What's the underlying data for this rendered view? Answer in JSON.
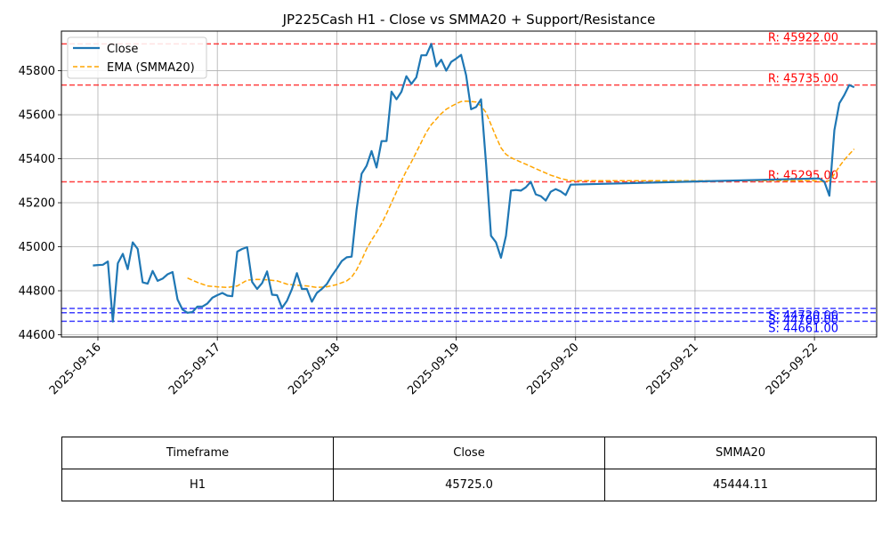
{
  "chart_data": {
    "type": "line",
    "title": "JP225Cash H1 - Close vs SMMA20 + Support/Resistance",
    "xlabel": "",
    "ylabel": "",
    "x_tick_labels": [
      "2025-09-16",
      "2025-09-17",
      "2025-09-18",
      "2025-09-19",
      "2025-09-20",
      "2025-09-21",
      "2025-09-22"
    ],
    "y_tick_labels": [
      "44600",
      "44800",
      "45000",
      "45200",
      "45400",
      "45600",
      "45800"
    ],
    "ylim": [
      44590,
      45980
    ],
    "xlim": [
      "2025-09-15T16:40",
      "2025-09-22T12:30"
    ],
    "grid": true,
    "legend_position": "upper left",
    "colors": {
      "close": "#1f77b4",
      "smma": "#ffa500",
      "resistance": "#ff0000",
      "support": "#0000ff"
    },
    "series": [
      {
        "name": "Close",
        "style": "solid",
        "points": [
          [
            "2025-09-15T23:00",
            44915
          ],
          [
            "2025-09-16T00:00",
            44917
          ],
          [
            "2025-09-16T01:00",
            44918
          ],
          [
            "2025-09-16T02:00",
            44933
          ],
          [
            "2025-09-16T03:00",
            44660
          ],
          [
            "2025-09-16T04:00",
            44925
          ],
          [
            "2025-09-16T05:00",
            44968
          ],
          [
            "2025-09-16T06:00",
            44898
          ],
          [
            "2025-09-16T07:00",
            45020
          ],
          [
            "2025-09-16T08:00",
            44990
          ],
          [
            "2025-09-16T09:00",
            44838
          ],
          [
            "2025-09-16T10:00",
            44832
          ],
          [
            "2025-09-16T11:00",
            44890
          ],
          [
            "2025-09-16T12:00",
            44845
          ],
          [
            "2025-09-16T13:00",
            44855
          ],
          [
            "2025-09-16T14:00",
            44875
          ],
          [
            "2025-09-16T15:00",
            44885
          ],
          [
            "2025-09-16T16:00",
            44760
          ],
          [
            "2025-09-16T17:00",
            44715
          ],
          [
            "2025-09-16T18:00",
            44700
          ],
          [
            "2025-09-16T19:00",
            44703
          ],
          [
            "2025-09-16T20:00",
            44728
          ],
          [
            "2025-09-16T21:00",
            44728
          ],
          [
            "2025-09-16T22:00",
            44742
          ],
          [
            "2025-09-16T23:00",
            44768
          ],
          [
            "2025-09-17T00:00",
            44780
          ],
          [
            "2025-09-17T01:00",
            44790
          ],
          [
            "2025-09-17T02:00",
            44778
          ],
          [
            "2025-09-17T03:00",
            44775
          ],
          [
            "2025-09-17T04:00",
            44978
          ],
          [
            "2025-09-17T05:00",
            44990
          ],
          [
            "2025-09-17T06:00",
            44998
          ],
          [
            "2025-09-17T07:00",
            44840
          ],
          [
            "2025-09-17T08:00",
            44808
          ],
          [
            "2025-09-17T09:00",
            44835
          ],
          [
            "2025-09-17T10:00",
            44888
          ],
          [
            "2025-09-17T11:00",
            44782
          ],
          [
            "2025-09-17T12:00",
            44780
          ],
          [
            "2025-09-17T13:00",
            44722
          ],
          [
            "2025-09-17T14:00",
            44755
          ],
          [
            "2025-09-17T15:00",
            44808
          ],
          [
            "2025-09-17T16:00",
            44880
          ],
          [
            "2025-09-17T17:00",
            44808
          ],
          [
            "2025-09-17T18:00",
            44808
          ],
          [
            "2025-09-17T19:00",
            44750
          ],
          [
            "2025-09-17T20:00",
            44790
          ],
          [
            "2025-09-17T21:00",
            44808
          ],
          [
            "2025-09-17T22:00",
            44830
          ],
          [
            "2025-09-17T23:00",
            44868
          ],
          [
            "2025-09-18T00:00",
            44900
          ],
          [
            "2025-09-18T01:00",
            44935
          ],
          [
            "2025-09-18T02:00",
            44952
          ],
          [
            "2025-09-18T03:00",
            44955
          ],
          [
            "2025-09-18T04:00",
            45170
          ],
          [
            "2025-09-18T05:00",
            45332
          ],
          [
            "2025-09-18T06:00",
            45368
          ],
          [
            "2025-09-18T07:00",
            45435
          ],
          [
            "2025-09-18T08:00",
            45360
          ],
          [
            "2025-09-18T09:00",
            45480
          ],
          [
            "2025-09-18T10:00",
            45480
          ],
          [
            "2025-09-18T11:00",
            45705
          ],
          [
            "2025-09-18T12:00",
            45670
          ],
          [
            "2025-09-18T13:00",
            45705
          ],
          [
            "2025-09-18T14:00",
            45775
          ],
          [
            "2025-09-18T15:00",
            45740
          ],
          [
            "2025-09-18T16:00",
            45770
          ],
          [
            "2025-09-18T17:00",
            45870
          ],
          [
            "2025-09-18T18:00",
            45870
          ],
          [
            "2025-09-18T19:00",
            45922
          ],
          [
            "2025-09-18T20:00",
            45820
          ],
          [
            "2025-09-18T21:00",
            45850
          ],
          [
            "2025-09-18T22:00",
            45800
          ],
          [
            "2025-09-18T23:00",
            45840
          ],
          [
            "2025-09-19T00:00",
            45855
          ],
          [
            "2025-09-19T01:00",
            45872
          ],
          [
            "2025-09-19T02:00",
            45780
          ],
          [
            "2025-09-19T03:00",
            45625
          ],
          [
            "2025-09-19T04:00",
            45635
          ],
          [
            "2025-09-19T05:00",
            45670
          ],
          [
            "2025-09-19T06:00",
            45380
          ],
          [
            "2025-09-19T07:00",
            45050
          ],
          [
            "2025-09-19T08:00",
            45020
          ],
          [
            "2025-09-19T09:00",
            44950
          ],
          [
            "2025-09-19T10:00",
            45050
          ],
          [
            "2025-09-19T11:00",
            45255
          ],
          [
            "2025-09-19T12:00",
            45258
          ],
          [
            "2025-09-19T13:00",
            45255
          ],
          [
            "2025-09-19T14:00",
            45270
          ],
          [
            "2025-09-19T15:00",
            45295
          ],
          [
            "2025-09-19T16:00",
            45238
          ],
          [
            "2025-09-19T17:00",
            45230
          ],
          [
            "2025-09-19T18:00",
            45210
          ],
          [
            "2025-09-19T19:00",
            45250
          ],
          [
            "2025-09-19T20:00",
            45262
          ],
          [
            "2025-09-19T21:00",
            45252
          ],
          [
            "2025-09-19T22:00",
            45235
          ],
          [
            "2025-09-19T23:00",
            45282
          ],
          [
            "2025-09-22T00:00",
            45310
          ],
          [
            "2025-09-22T01:00",
            45310
          ],
          [
            "2025-09-22T02:00",
            45295
          ],
          [
            "2025-09-22T03:00",
            45232
          ],
          [
            "2025-09-22T04:00",
            45530
          ],
          [
            "2025-09-22T05:00",
            45652
          ],
          [
            "2025-09-22T06:00",
            45690
          ],
          [
            "2025-09-22T07:00",
            45735
          ],
          [
            "2025-09-22T08:00",
            45725
          ]
        ]
      },
      {
        "name": "EMA (SMMA20)",
        "style": "dashed",
        "points": [
          [
            "2025-09-16T18:00",
            44858
          ],
          [
            "2025-09-16T20:00",
            44838
          ],
          [
            "2025-09-16T22:00",
            44822
          ],
          [
            "2025-09-17T00:00",
            44818
          ],
          [
            "2025-09-17T02:00",
            44815
          ],
          [
            "2025-09-17T04:00",
            44822
          ],
          [
            "2025-09-17T06:00",
            44848
          ],
          [
            "2025-09-17T08:00",
            44852
          ],
          [
            "2025-09-17T10:00",
            44850
          ],
          [
            "2025-09-17T12:00",
            44845
          ],
          [
            "2025-09-17T14:00",
            44830
          ],
          [
            "2025-09-17T16:00",
            44825
          ],
          [
            "2025-09-17T18:00",
            44822
          ],
          [
            "2025-09-17T20:00",
            44815
          ],
          [
            "2025-09-17T22:00",
            44818
          ],
          [
            "2025-09-18T00:00",
            44828
          ],
          [
            "2025-09-18T02:00",
            44845
          ],
          [
            "2025-09-18T03:00",
            44862
          ],
          [
            "2025-09-18T04:00",
            44895
          ],
          [
            "2025-09-18T05:00",
            44940
          ],
          [
            "2025-09-18T06:00",
            44990
          ],
          [
            "2025-09-18T07:00",
            45030
          ],
          [
            "2025-09-18T08:00",
            45065
          ],
          [
            "2025-09-18T09:00",
            45105
          ],
          [
            "2025-09-18T10:00",
            45150
          ],
          [
            "2025-09-18T11:00",
            45200
          ],
          [
            "2025-09-18T12:00",
            45250
          ],
          [
            "2025-09-18T13:00",
            45300
          ],
          [
            "2025-09-18T14:00",
            45345
          ],
          [
            "2025-09-18T15:00",
            45385
          ],
          [
            "2025-09-18T16:00",
            45430
          ],
          [
            "2025-09-18T17:00",
            45475
          ],
          [
            "2025-09-18T18:00",
            45520
          ],
          [
            "2025-09-18T19:00",
            45555
          ],
          [
            "2025-09-18T20:00",
            45580
          ],
          [
            "2025-09-18T21:00",
            45605
          ],
          [
            "2025-09-18T22:00",
            45625
          ],
          [
            "2025-09-18T23:00",
            45638
          ],
          [
            "2025-09-19T00:00",
            45650
          ],
          [
            "2025-09-19T01:00",
            45660
          ],
          [
            "2025-09-19T02:00",
            45662
          ],
          [
            "2025-09-19T03:00",
            45660
          ],
          [
            "2025-09-19T04:00",
            45658
          ],
          [
            "2025-09-19T05:00",
            45640
          ],
          [
            "2025-09-19T06:00",
            45610
          ],
          [
            "2025-09-19T07:00",
            45555
          ],
          [
            "2025-09-19T08:00",
            45500
          ],
          [
            "2025-09-19T09:00",
            45450
          ],
          [
            "2025-09-19T10:00",
            45420
          ],
          [
            "2025-09-19T11:00",
            45405
          ],
          [
            "2025-09-19T12:00",
            45395
          ],
          [
            "2025-09-19T13:00",
            45385
          ],
          [
            "2025-09-19T14:00",
            45375
          ],
          [
            "2025-09-19T15:00",
            45365
          ],
          [
            "2025-09-19T16:00",
            45355
          ],
          [
            "2025-09-19T17:00",
            45345
          ],
          [
            "2025-09-19T18:00",
            45335
          ],
          [
            "2025-09-19T19:00",
            45325
          ],
          [
            "2025-09-19T20:00",
            45318
          ],
          [
            "2025-09-19T21:00",
            45310
          ],
          [
            "2025-09-19T22:00",
            45305
          ],
          [
            "2025-09-19T23:00",
            45300
          ],
          [
            "2025-09-22T00:00",
            45300
          ],
          [
            "2025-09-22T01:00",
            45295
          ],
          [
            "2025-09-22T02:00",
            45298
          ],
          [
            "2025-09-22T03:00",
            45300
          ],
          [
            "2025-09-22T04:00",
            45330
          ],
          [
            "2025-09-22T05:00",
            45365
          ],
          [
            "2025-09-22T06:00",
            45395
          ],
          [
            "2025-09-22T07:00",
            45420
          ],
          [
            "2025-09-22T08:00",
            45444.11
          ]
        ]
      }
    ],
    "resistance_levels": [
      {
        "value": 45922.0,
        "label": "R: 45922.00"
      },
      {
        "value": 45735.0,
        "label": "R: 45735.00"
      },
      {
        "value": 45295.0,
        "label": "R: 45295.00"
      }
    ],
    "support_levels": [
      {
        "value": 44720.0,
        "label": "S: 44720.00"
      },
      {
        "value": 44700.0,
        "label": "S: 44700.00"
      },
      {
        "value": 44661.0,
        "label": "S: 44661.00"
      }
    ],
    "table": {
      "headers": [
        "Timeframe",
        "Close",
        "SMMA20"
      ],
      "rows": [
        [
          "H1",
          "45725.0",
          "45444.11"
        ]
      ]
    }
  }
}
